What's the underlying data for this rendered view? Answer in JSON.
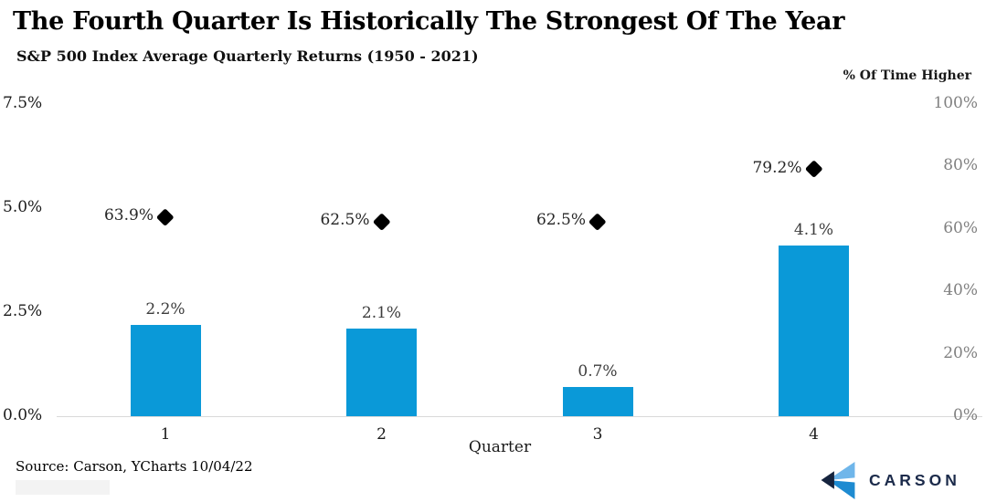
{
  "header": {
    "title": "The Fourth Quarter Is Historically The Strongest Of The Year",
    "subtitle": "S&P 500 Index Average Quarterly Returns (1950 - 2021)"
  },
  "chart_data": {
    "type": "bar",
    "categories": [
      "1",
      "2",
      "3",
      "4"
    ],
    "series": [
      {
        "name": "S&P 500 Average Quarterly Return",
        "type": "bar",
        "axis": "left",
        "values": [
          2.2,
          2.1,
          0.7,
          4.1
        ],
        "labels": [
          "2.2%",
          "2.1%",
          "0.7%",
          "4.1%"
        ],
        "color": "#0a99d8"
      },
      {
        "name": "% Of Time Higher",
        "type": "scatter",
        "marker": "diamond",
        "axis": "right",
        "values": [
          63.9,
          62.5,
          62.5,
          79.2
        ],
        "labels": [
          "63.9%",
          "62.5%",
          "62.5%",
          "79.2%"
        ],
        "color": "#000000"
      }
    ],
    "title": "The Fourth Quarter Is Historically The Strongest Of The Year",
    "subtitle": "S&P 500 Index Average Quarterly Returns (1950 - 2021)",
    "xlabel": "Quarter",
    "left_axis": {
      "ticks": [
        "0.0%",
        "2.5%",
        "5.0%",
        "7.5%"
      ],
      "values": [
        0,
        2.5,
        5,
        7.5
      ],
      "range": [
        0,
        7.5
      ]
    },
    "right_axis": {
      "title": "% Of Time Higher",
      "ticks": [
        "0%",
        "20%",
        "40%",
        "60%",
        "80%",
        "100%"
      ],
      "values": [
        0,
        20,
        40,
        60,
        80,
        100
      ],
      "range": [
        0,
        100
      ]
    },
    "grid": false,
    "legend": "none"
  },
  "footer": {
    "source": "Source: Carson, YCharts 10/04/22",
    "logo_text": "CARSON"
  },
  "colors": {
    "bar": "#0a99d8",
    "marker": "#000000",
    "axis_line": "#d9d9d9",
    "right_axis_text": "#808080",
    "logo_navy": "#1b2a4a",
    "logo_light_blue": "#6fb6ea",
    "logo_mid_blue": "#1e8bd1"
  }
}
